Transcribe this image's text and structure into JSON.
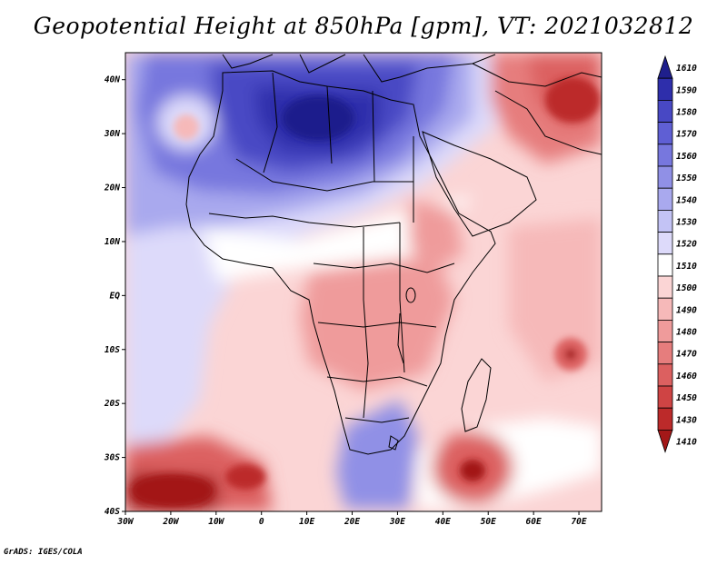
{
  "title": "Geopotential Height at 850hPa [gpm], VT: 2021032812",
  "credit": "GrADS: IGES/COLA",
  "map": {
    "lon_range": [
      -30,
      75
    ],
    "lat_range": [
      -40,
      45
    ],
    "lat_labels": [
      "40N",
      "30N",
      "20N",
      "10N",
      "EQ",
      "10S",
      "20S",
      "30S",
      "40S"
    ],
    "lat_values": [
      40,
      30,
      20,
      10,
      0,
      -10,
      -20,
      -30,
      -40
    ],
    "lon_labels": [
      "30W",
      "20W",
      "10W",
      "0",
      "10E",
      "20E",
      "30E",
      "40E",
      "50E",
      "60E",
      "70E"
    ],
    "lon_values": [
      -30,
      -20,
      -10,
      0,
      10,
      20,
      30,
      40,
      50,
      60,
      70
    ]
  },
  "colorbar": {
    "levels": [
      "1610",
      "1590",
      "1580",
      "1570",
      "1560",
      "1550",
      "1540",
      "1530",
      "1520",
      "1510",
      "1500",
      "1490",
      "1480",
      "1470",
      "1460",
      "1450",
      "1430",
      "1410"
    ],
    "colors": [
      "#1f1f8c",
      "#2e2eab",
      "#4848c4",
      "#5f5fd4",
      "#7777de",
      "#9090e6",
      "#a9a9ee",
      "#c3c3f5",
      "#dddafa",
      "#ffffff",
      "#fbd5d5",
      "#f6b9b9",
      "#ef9b9b",
      "#e67d7d",
      "#dc6060",
      "#cf4444",
      "#bc2a2a",
      "#a31818"
    ]
  }
}
